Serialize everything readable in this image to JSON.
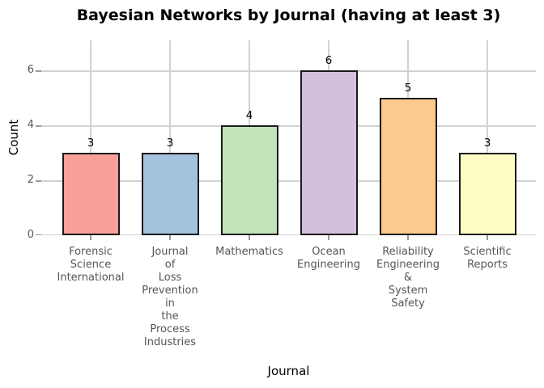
{
  "chart_data": {
    "type": "bar",
    "title": "Bayesian Networks by Journal (having at least 3)",
    "xlabel": "Journal",
    "ylabel": "Count",
    "categories": [
      "Forensic Science International",
      "Journal of Loss Prevention in the Process Industries",
      "Mathematics",
      "Ocean Engineering",
      "Reliability Engineering & System Safety",
      "Scientific Reports"
    ],
    "values": [
      3,
      3,
      4,
      6,
      5,
      3
    ],
    "bar_labels": [
      "3",
      "3",
      "4",
      "6",
      "5",
      "3"
    ],
    "bar_colors": [
      "#f9a099",
      "#a4c2dd",
      "#c2e4b8",
      "#d2c0de",
      "#fbca8c",
      "#fdfdc3"
    ],
    "bar_edge_color": "#1a1a1a",
    "yticks": [
      0,
      2,
      4,
      6
    ],
    "ylim": [
      0,
      7.1
    ],
    "grid": true,
    "grid_color": "#d2d2d2",
    "tick_mark_color": "#9a9a9a",
    "tick_label_color": "#555555",
    "legend": "none"
  }
}
